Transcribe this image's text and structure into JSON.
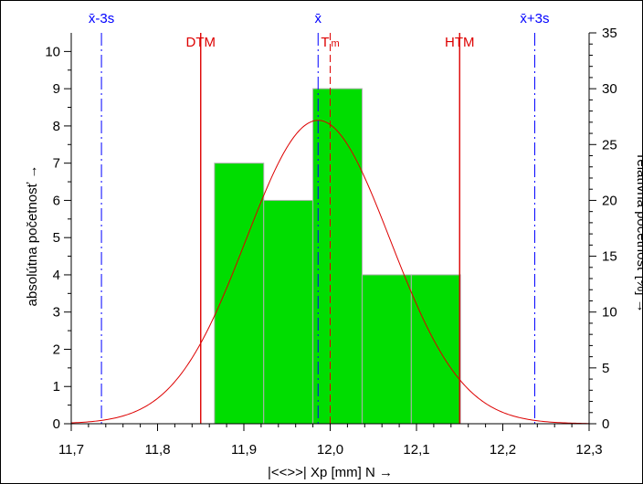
{
  "chart_data": {
    "type": "bar",
    "xlabel": "|<<>>|  Xp [mm]  N",
    "xlabel_arrow": "→",
    "ylabel_left": "absolútna početnosť",
    "ylabel_left_arrow": "→",
    "ylabel_right": "relatívna početnosť  [%]",
    "ylabel_right_arrow": "→",
    "xlim": [
      11.7,
      12.3
    ],
    "ylim_left": [
      0,
      10.5
    ],
    "ylim_right": [
      0,
      35
    ],
    "x_ticks": [
      11.7,
      11.8,
      11.9,
      12.0,
      12.1,
      12.2,
      12.3
    ],
    "x_tick_labels": [
      "11,7",
      "11,8",
      "11,9",
      "12,0",
      "12,1",
      "12,2",
      "12,3"
    ],
    "y_left_ticks": [
      0,
      1,
      2,
      3,
      4,
      5,
      6,
      7,
      8,
      9,
      10
    ],
    "y_right_ticks": [
      0,
      5,
      10,
      15,
      20,
      25,
      30,
      35
    ],
    "bars": [
      {
        "x0": 11.866,
        "x1": 11.923,
        "count": 7
      },
      {
        "x0": 11.923,
        "x1": 11.98,
        "count": 6
      },
      {
        "x0": 11.98,
        "x1": 12.037,
        "count": 9
      },
      {
        "x0": 12.037,
        "x1": 12.094,
        "count": 4
      },
      {
        "x0": 12.094,
        "x1": 12.151,
        "count": 4
      }
    ],
    "normal_curve": {
      "mean": 11.986,
      "sigma": 0.0835,
      "peak": 8.15
    },
    "reference_lines": [
      {
        "label": "x̄-3s",
        "x": 11.735,
        "color": "#0000ff",
        "style": "dashdot"
      },
      {
        "label": "DTM",
        "x": 11.85,
        "color": "#dd0000",
        "style": "solid"
      },
      {
        "label": "x̄",
        "x": 11.986,
        "color": "#0000ff",
        "style": "dashdot"
      },
      {
        "label": "Tm",
        "x": 12.0,
        "color": "#dd0000",
        "style": "dashed"
      },
      {
        "label": "HTM",
        "x": 12.15,
        "color": "#dd0000",
        "style": "solid"
      },
      {
        "label": "x̄+3s",
        "x": 12.237,
        "color": "#0000ff",
        "style": "dashdot"
      }
    ],
    "colors": {
      "bar_fill": "#00dd00",
      "bar_edge": "#b0b0b0",
      "curve": "#dd0000",
      "axis": "#000000"
    }
  }
}
